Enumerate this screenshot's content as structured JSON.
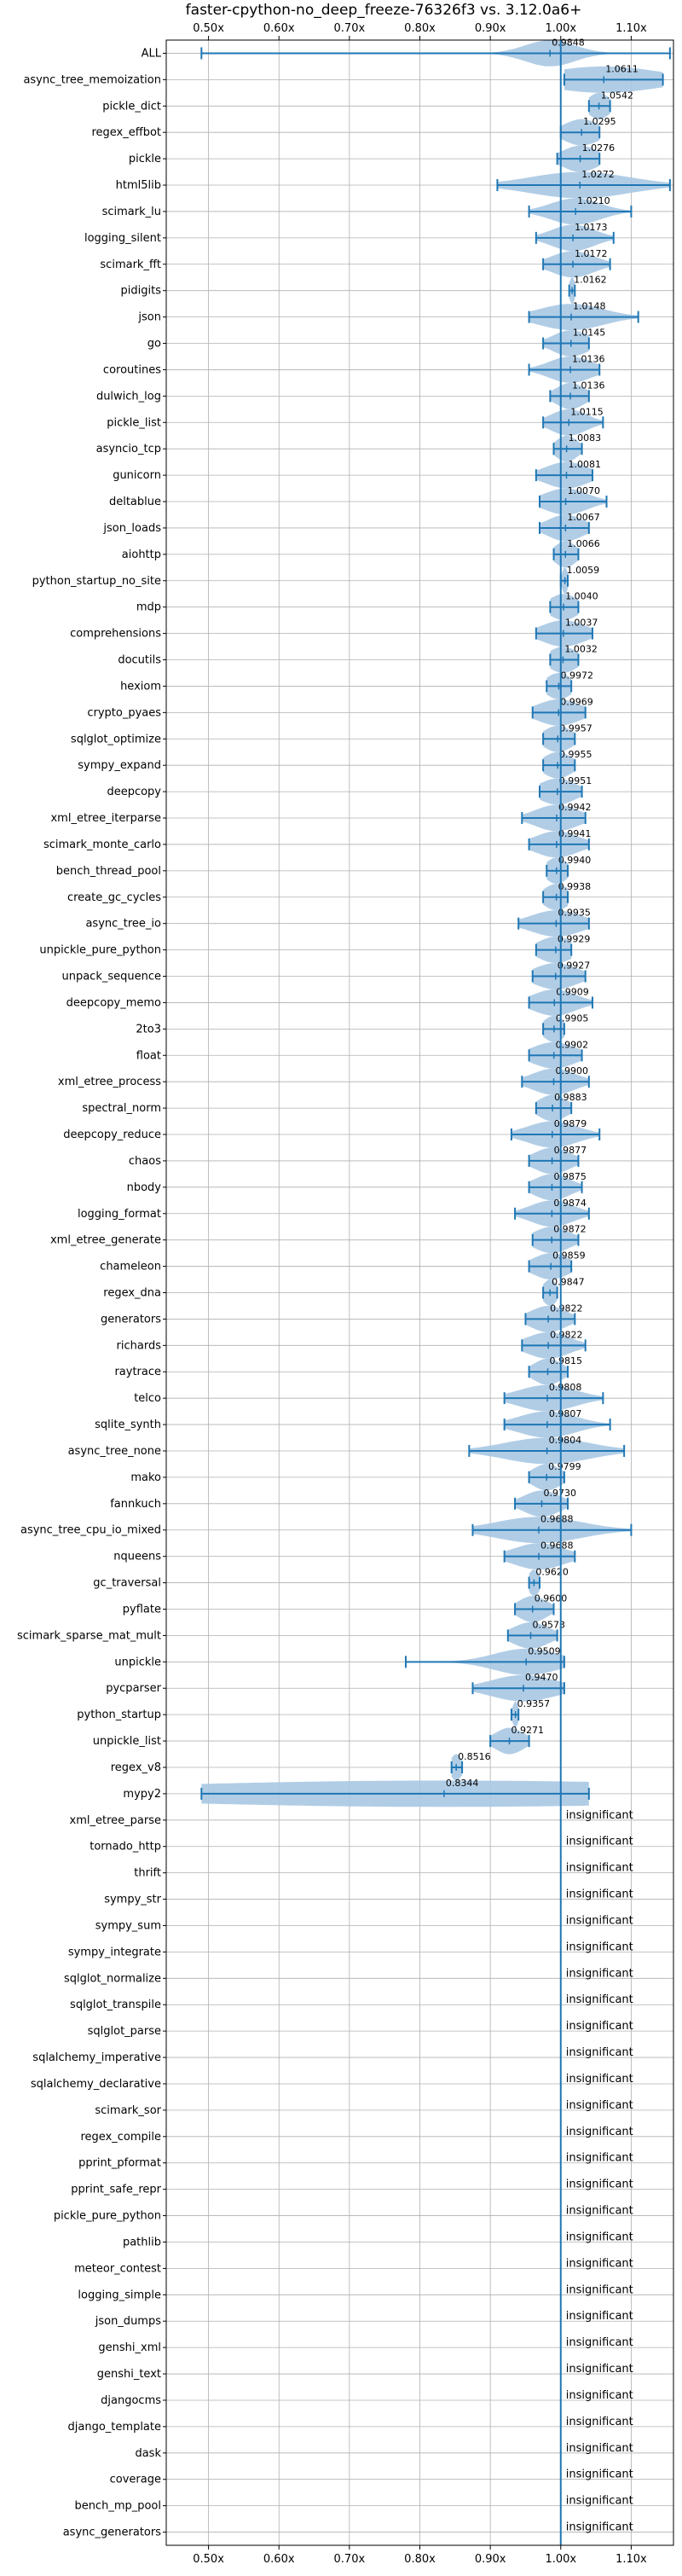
{
  "chart_data": {
    "type": "violin",
    "title": "faster-cpython-no_deep_freeze-76326f3 vs. 3.12.0a6+",
    "xlim": [
      0.44,
      1.16
    ],
    "x_ticks": [
      0.5,
      0.6,
      0.7,
      0.8,
      0.9,
      1.0,
      1.1
    ],
    "x_tick_labels": [
      "0.50x",
      "0.60x",
      "0.70x",
      "0.80x",
      "0.90x",
      "1.00x",
      "1.10x"
    ],
    "x_ticks_top_and_bottom": true,
    "grid": true,
    "reference_line": 1.0,
    "colors": {
      "violin": "#a9c8e3",
      "whisker": "#1f77b4",
      "reference": "#1f77b4",
      "grid": "#b0b0b0"
    },
    "insignificant_text": "insignificant",
    "rows": [
      {
        "name": "ALL",
        "label": "0.9848",
        "value": 0.9848,
        "min": 0.49,
        "max": 1.155,
        "w": 0.035
      },
      {
        "name": "async_tree_memoization",
        "label": "1.0611",
        "value": 1.0611,
        "min": 1.005,
        "max": 1.145,
        "w": 0.08
      },
      {
        "name": "pickle_dict",
        "label": "1.0542",
        "value": 1.0542,
        "min": 1.04,
        "max": 1.07,
        "w": 0.015
      },
      {
        "name": "regex_effbot",
        "label": "1.0295",
        "value": 1.0295,
        "min": 1.0,
        "max": 1.055,
        "w": 0.025
      },
      {
        "name": "pickle",
        "label": "1.0276",
        "value": 1.0276,
        "min": 0.995,
        "max": 1.055,
        "w": 0.025
      },
      {
        "name": "html5lib",
        "label": "1.0272",
        "value": 1.0272,
        "min": 0.91,
        "max": 1.155,
        "w": 0.07
      },
      {
        "name": "scimark_lu",
        "label": "1.0210",
        "value": 1.021,
        "min": 0.955,
        "max": 1.1,
        "w": 0.035
      },
      {
        "name": "logging_silent",
        "label": "1.0173",
        "value": 1.0173,
        "min": 0.965,
        "max": 1.075,
        "w": 0.03
      },
      {
        "name": "scimark_fft",
        "label": "1.0172",
        "value": 1.0172,
        "min": 0.975,
        "max": 1.07,
        "w": 0.03
      },
      {
        "name": "pidigits",
        "label": "1.0162",
        "value": 1.0162,
        "min": 1.012,
        "max": 1.02,
        "w": 0.004
      },
      {
        "name": "json",
        "label": "1.0148",
        "value": 1.0148,
        "min": 0.955,
        "max": 1.11,
        "w": 0.045
      },
      {
        "name": "go",
        "label": "1.0145",
        "value": 1.0145,
        "min": 0.975,
        "max": 1.04,
        "w": 0.025
      },
      {
        "name": "coroutines",
        "label": "1.0136",
        "value": 1.0136,
        "min": 0.955,
        "max": 1.055,
        "w": 0.03
      },
      {
        "name": "dulwich_log",
        "label": "1.0136",
        "value": 1.0136,
        "min": 0.985,
        "max": 1.04,
        "w": 0.02
      },
      {
        "name": "pickle_list",
        "label": "1.0115",
        "value": 1.0115,
        "min": 0.975,
        "max": 1.06,
        "w": 0.025
      },
      {
        "name": "asyncio_tcp",
        "label": "1.0083",
        "value": 1.0083,
        "min": 0.99,
        "max": 1.03,
        "w": 0.015
      },
      {
        "name": "gunicorn",
        "label": "1.0081",
        "value": 1.0081,
        "min": 0.965,
        "max": 1.045,
        "w": 0.03
      },
      {
        "name": "deltablue",
        "label": "1.0070",
        "value": 1.007,
        "min": 0.97,
        "max": 1.065,
        "w": 0.03
      },
      {
        "name": "json_loads",
        "label": "1.0067",
        "value": 1.0067,
        "min": 0.97,
        "max": 1.04,
        "w": 0.025
      },
      {
        "name": "aiohttp",
        "label": "1.0066",
        "value": 1.0066,
        "min": 0.99,
        "max": 1.025,
        "w": 0.015
      },
      {
        "name": "python_startup_no_site",
        "label": "1.0059",
        "value": 1.0059,
        "min": 1.0,
        "max": 1.01,
        "w": 0.004
      },
      {
        "name": "mdp",
        "label": "1.0040",
        "value": 1.004,
        "min": 0.985,
        "max": 1.025,
        "w": 0.02
      },
      {
        "name": "comprehensions",
        "label": "1.0037",
        "value": 1.0037,
        "min": 0.965,
        "max": 1.045,
        "w": 0.03
      },
      {
        "name": "docutils",
        "label": "1.0032",
        "value": 1.0032,
        "min": 0.985,
        "max": 1.025,
        "w": 0.02
      },
      {
        "name": "hexiom",
        "label": "0.9972",
        "value": 0.9972,
        "min": 0.98,
        "max": 1.015,
        "w": 0.018
      },
      {
        "name": "crypto_pyaes",
        "label": "0.9969",
        "value": 0.9969,
        "min": 0.96,
        "max": 1.035,
        "w": 0.03
      },
      {
        "name": "sqlglot_optimize",
        "label": "0.9957",
        "value": 0.9957,
        "min": 0.975,
        "max": 1.02,
        "w": 0.02
      },
      {
        "name": "sympy_expand",
        "label": "0.9955",
        "value": 0.9955,
        "min": 0.975,
        "max": 1.02,
        "w": 0.02
      },
      {
        "name": "deepcopy",
        "label": "0.9951",
        "value": 0.9951,
        "min": 0.97,
        "max": 1.03,
        "w": 0.025
      },
      {
        "name": "xml_etree_iterparse",
        "label": "0.9942",
        "value": 0.9942,
        "min": 0.945,
        "max": 1.035,
        "w": 0.03
      },
      {
        "name": "scimark_monte_carlo",
        "label": "0.9941",
        "value": 0.9941,
        "min": 0.955,
        "max": 1.04,
        "w": 0.03
      },
      {
        "name": "bench_thread_pool",
        "label": "0.9940",
        "value": 0.994,
        "min": 0.98,
        "max": 1.01,
        "w": 0.015
      },
      {
        "name": "create_gc_cycles",
        "label": "0.9938",
        "value": 0.9938,
        "min": 0.975,
        "max": 1.01,
        "w": 0.018
      },
      {
        "name": "async_tree_io",
        "label": "0.9935",
        "value": 0.9935,
        "min": 0.94,
        "max": 1.04,
        "w": 0.035
      },
      {
        "name": "unpickle_pure_python",
        "label": "0.9929",
        "value": 0.9929,
        "min": 0.965,
        "max": 1.015,
        "w": 0.025
      },
      {
        "name": "unpack_sequence",
        "label": "0.9927",
        "value": 0.9927,
        "min": 0.96,
        "max": 1.035,
        "w": 0.03
      },
      {
        "name": "deepcopy_memo",
        "label": "0.9909",
        "value": 0.9909,
        "min": 0.955,
        "max": 1.045,
        "w": 0.03
      },
      {
        "name": "2to3",
        "label": "0.9905",
        "value": 0.9905,
        "min": 0.975,
        "max": 1.005,
        "w": 0.015
      },
      {
        "name": "float",
        "label": "0.9902",
        "value": 0.9902,
        "min": 0.955,
        "max": 1.03,
        "w": 0.03
      },
      {
        "name": "xml_etree_process",
        "label": "0.9900",
        "value": 0.99,
        "min": 0.945,
        "max": 1.04,
        "w": 0.03
      },
      {
        "name": "spectral_norm",
        "label": "0.9883",
        "value": 0.9883,
        "min": 0.965,
        "max": 1.015,
        "w": 0.02
      },
      {
        "name": "deepcopy_reduce",
        "label": "0.9879",
        "value": 0.9879,
        "min": 0.93,
        "max": 1.055,
        "w": 0.035
      },
      {
        "name": "chaos",
        "label": "0.9877",
        "value": 0.9877,
        "min": 0.955,
        "max": 1.025,
        "w": 0.025
      },
      {
        "name": "nbody",
        "label": "0.9875",
        "value": 0.9875,
        "min": 0.955,
        "max": 1.03,
        "w": 0.025
      },
      {
        "name": "logging_format",
        "label": "0.9874",
        "value": 0.9874,
        "min": 0.935,
        "max": 1.04,
        "w": 0.03
      },
      {
        "name": "xml_etree_generate",
        "label": "0.9872",
        "value": 0.9872,
        "min": 0.96,
        "max": 1.025,
        "w": 0.025
      },
      {
        "name": "chameleon",
        "label": "0.9859",
        "value": 0.9859,
        "min": 0.955,
        "max": 1.015,
        "w": 0.025
      },
      {
        "name": "regex_dna",
        "label": "0.9847",
        "value": 0.9847,
        "min": 0.975,
        "max": 0.995,
        "w": 0.01
      },
      {
        "name": "generators",
        "label": "0.9822",
        "value": 0.9822,
        "min": 0.95,
        "max": 1.02,
        "w": 0.025
      },
      {
        "name": "richards",
        "label": "0.9822",
        "value": 0.9822,
        "min": 0.945,
        "max": 1.035,
        "w": 0.03
      },
      {
        "name": "raytrace",
        "label": "0.9815",
        "value": 0.9815,
        "min": 0.955,
        "max": 1.01,
        "w": 0.02
      },
      {
        "name": "telco",
        "label": "0.9808",
        "value": 0.9808,
        "min": 0.92,
        "max": 1.06,
        "w": 0.04
      },
      {
        "name": "sqlite_synth",
        "label": "0.9807",
        "value": 0.9807,
        "min": 0.92,
        "max": 1.07,
        "w": 0.04
      },
      {
        "name": "async_tree_none",
        "label": "0.9804",
        "value": 0.9804,
        "min": 0.87,
        "max": 1.09,
        "w": 0.06
      },
      {
        "name": "mako",
        "label": "0.9799",
        "value": 0.9799,
        "min": 0.955,
        "max": 1.005,
        "w": 0.02
      },
      {
        "name": "fannkuch",
        "label": "0.9730",
        "value": 0.973,
        "min": 0.935,
        "max": 1.01,
        "w": 0.025
      },
      {
        "name": "async_tree_cpu_io_mixed",
        "label": "0.9688",
        "value": 0.9688,
        "min": 0.875,
        "max": 1.1,
        "w": 0.06
      },
      {
        "name": "nqueens",
        "label": "0.9688",
        "value": 0.9688,
        "min": 0.92,
        "max": 1.02,
        "w": 0.035
      },
      {
        "name": "gc_traversal",
        "label": "0.9620",
        "value": 0.962,
        "min": 0.955,
        "max": 0.97,
        "w": 0.008
      },
      {
        "name": "pyflate",
        "label": "0.9600",
        "value": 0.96,
        "min": 0.935,
        "max": 0.99,
        "w": 0.02
      },
      {
        "name": "scimark_sparse_mat_mult",
        "label": "0.9573",
        "value": 0.9573,
        "min": 0.925,
        "max": 0.995,
        "w": 0.025
      },
      {
        "name": "unpickle",
        "label": "0.9509",
        "value": 0.9509,
        "min": 0.78,
        "max": 1.005,
        "w": 0.045
      },
      {
        "name": "pycparser",
        "label": "0.9470",
        "value": 0.947,
        "min": 0.875,
        "max": 1.005,
        "w": 0.045
      },
      {
        "name": "python_startup",
        "label": "0.9357",
        "value": 0.9357,
        "min": 0.93,
        "max": 0.94,
        "w": 0.004
      },
      {
        "name": "unpickle_list",
        "label": "0.9271",
        "value": 0.9271,
        "min": 0.9,
        "max": 0.955,
        "w": 0.02
      },
      {
        "name": "regex_v8",
        "label": "0.8516",
        "value": 0.8516,
        "min": 0.845,
        "max": 0.86,
        "w": 0.008
      },
      {
        "name": "mypy2",
        "label": "0.8344",
        "value": 0.8344,
        "min": 0.49,
        "max": 1.04,
        "w": 0.45
      },
      {
        "name": "xml_etree_parse",
        "insignificant": true
      },
      {
        "name": "tornado_http",
        "insignificant": true
      },
      {
        "name": "thrift",
        "insignificant": true
      },
      {
        "name": "sympy_str",
        "insignificant": true
      },
      {
        "name": "sympy_sum",
        "insignificant": true
      },
      {
        "name": "sympy_integrate",
        "insignificant": true
      },
      {
        "name": "sqlglot_normalize",
        "insignificant": true
      },
      {
        "name": "sqlglot_transpile",
        "insignificant": true
      },
      {
        "name": "sqlglot_parse",
        "insignificant": true
      },
      {
        "name": "sqlalchemy_imperative",
        "insignificant": true
      },
      {
        "name": "sqlalchemy_declarative",
        "insignificant": true
      },
      {
        "name": "scimark_sor",
        "insignificant": true
      },
      {
        "name": "regex_compile",
        "insignificant": true
      },
      {
        "name": "pprint_pformat",
        "insignificant": true
      },
      {
        "name": "pprint_safe_repr",
        "insignificant": true
      },
      {
        "name": "pickle_pure_python",
        "insignificant": true
      },
      {
        "name": "pathlib",
        "insignificant": true
      },
      {
        "name": "meteor_contest",
        "insignificant": true
      },
      {
        "name": "logging_simple",
        "insignificant": true
      },
      {
        "name": "json_dumps",
        "insignificant": true
      },
      {
        "name": "genshi_xml",
        "insignificant": true
      },
      {
        "name": "genshi_text",
        "insignificant": true
      },
      {
        "name": "djangocms",
        "insignificant": true
      },
      {
        "name": "django_template",
        "insignificant": true
      },
      {
        "name": "dask",
        "insignificant": true
      },
      {
        "name": "coverage",
        "insignificant": true
      },
      {
        "name": "bench_mp_pool",
        "insignificant": true
      },
      {
        "name": "async_generators",
        "insignificant": true
      }
    ]
  }
}
